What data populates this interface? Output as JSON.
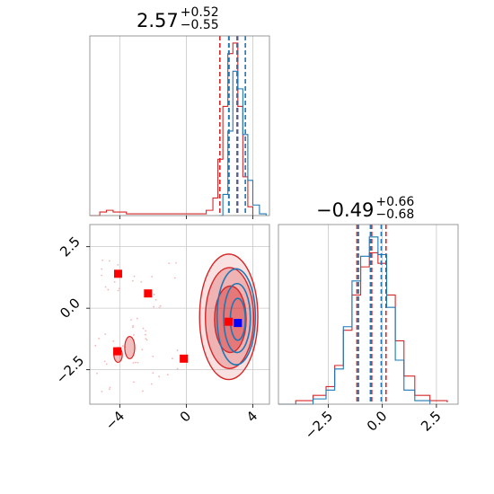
{
  "chart_data": {
    "type": "corner",
    "parameters": [
      {
        "title_value": "2.57",
        "title_plus": "+0.52",
        "title_minus": "−0.55",
        "median": 2.57,
        "lower": 2.02,
        "upper": 3.09
      },
      {
        "title_value": "−0.49",
        "title_plus": "+0.66",
        "title_minus": "−0.68",
        "median": -0.49,
        "lower": -1.17,
        "upper": 0.17
      }
    ],
    "x_ticks_param1": [
      "−4",
      "0",
      "4"
    ],
    "x_ticks_param2": [
      "−2.5",
      "0.0",
      "2.5"
    ],
    "y_ticks_param2": [
      "2.5",
      "0.0",
      "−2.5"
    ],
    "xlim_param1": [
      -5.8,
      5.0
    ],
    "xlim_param2": [
      -4.8,
      3.5
    ],
    "ylim_param2": [
      -3.9,
      3.4
    ],
    "grid": true,
    "series": [
      {
        "color": "#d62728",
        "quantile_lines_param1": [
          2.02,
          2.57,
          3.09
        ],
        "quantile_lines_param2": [
          -1.17,
          -0.49,
          0.17
        ],
        "hist_param1": [
          {
            "x": -5.8,
            "h": 0.0
          },
          {
            "x": -5.2,
            "h": 0.02
          },
          {
            "x": -4.8,
            "h": 0.03
          },
          {
            "x": -4.4,
            "h": 0.02
          },
          {
            "x": -4.0,
            "h": 0.02
          },
          {
            "x": -3.6,
            "h": 0.01
          },
          {
            "x": -1.2,
            "h": 0.01
          },
          {
            "x": 0.0,
            "h": 0.01
          },
          {
            "x": 1.2,
            "h": 0.03
          },
          {
            "x": 1.6,
            "h": 0.1
          },
          {
            "x": 1.9,
            "h": 0.32
          },
          {
            "x": 2.2,
            "h": 0.62
          },
          {
            "x": 2.5,
            "h": 0.92
          },
          {
            "x": 2.8,
            "h": 0.98
          },
          {
            "x": 3.1,
            "h": 0.62
          },
          {
            "x": 3.4,
            "h": 0.22
          },
          {
            "x": 3.7,
            "h": 0.05
          },
          {
            "x": 4.0,
            "h": 0.0
          }
        ],
        "hist_param2": [
          {
            "x": -4.8,
            "h": 0.0
          },
          {
            "x": -4.0,
            "h": 0.02
          },
          {
            "x": -3.2,
            "h": 0.05
          },
          {
            "x": -2.6,
            "h": 0.1
          },
          {
            "x": -2.2,
            "h": 0.22
          },
          {
            "x": -1.8,
            "h": 0.42
          },
          {
            "x": -1.4,
            "h": 0.62
          },
          {
            "x": -1.0,
            "h": 0.78
          },
          {
            "x": -0.6,
            "h": 0.86
          },
          {
            "x": -0.2,
            "h": 0.8
          },
          {
            "x": 0.2,
            "h": 0.62
          },
          {
            "x": 0.6,
            "h": 0.36
          },
          {
            "x": 1.0,
            "h": 0.16
          },
          {
            "x": 1.5,
            "h": 0.05
          },
          {
            "x": 2.2,
            "h": 0.02
          },
          {
            "x": 3.0,
            "h": 0.01
          }
        ],
        "contours": [
          {
            "cx": 2.55,
            "cy": -0.35,
            "rx": 1.75,
            "ry": 2.55,
            "alpha": 0.25
          },
          {
            "cx": 2.6,
            "cy": -0.4,
            "rx": 1.45,
            "ry": 2.05,
            "alpha": 0.45
          },
          {
            "cx": 2.65,
            "cy": -0.45,
            "rx": 0.95,
            "ry": 1.35,
            "alpha": 0.75
          }
        ],
        "outlier_contours": [
          {
            "cx": -3.4,
            "cy": -1.6,
            "rx": 0.3,
            "ry": 0.45
          },
          {
            "cx": -4.1,
            "cy": -1.9,
            "rx": 0.25,
            "ry": 0.3
          }
        ],
        "markers": [
          {
            "x": -4.1,
            "y": 1.4
          },
          {
            "x": -2.3,
            "y": 0.6
          },
          {
            "x": -0.15,
            "y": -2.05
          },
          {
            "x": -4.15,
            "y": -1.75
          },
          {
            "x": 2.55,
            "y": -0.55
          }
        ]
      },
      {
        "color": "#1f77b4",
        "quantile_lines_param1": [
          2.55,
          3.05,
          3.55
        ],
        "quantile_lines_param2": [
          -1.1,
          -0.55,
          -0.05
        ],
        "hist_param1": [
          {
            "x": 2.0,
            "h": 0.0
          },
          {
            "x": 2.2,
            "h": 0.12
          },
          {
            "x": 2.5,
            "h": 0.48
          },
          {
            "x": 2.8,
            "h": 0.82
          },
          {
            "x": 3.1,
            "h": 0.72
          },
          {
            "x": 3.4,
            "h": 0.46
          },
          {
            "x": 3.7,
            "h": 0.2
          },
          {
            "x": 4.0,
            "h": 0.06
          },
          {
            "x": 4.4,
            "h": 0.01
          },
          {
            "x": 4.8,
            "h": 0.0
          }
        ],
        "hist_param2": [
          {
            "x": -4.8,
            "h": 0.0
          },
          {
            "x": -3.2,
            "h": 0.03
          },
          {
            "x": -2.6,
            "h": 0.08
          },
          {
            "x": -2.2,
            "h": 0.2
          },
          {
            "x": -1.8,
            "h": 0.44
          },
          {
            "x": -1.4,
            "h": 0.7
          },
          {
            "x": -1.0,
            "h": 0.84
          },
          {
            "x": -0.6,
            "h": 0.95
          },
          {
            "x": -0.2,
            "h": 0.85
          },
          {
            "x": 0.2,
            "h": 0.55
          },
          {
            "x": 0.6,
            "h": 0.25
          },
          {
            "x": 1.0,
            "h": 0.08
          },
          {
            "x": 1.5,
            "h": 0.02
          },
          {
            "x": 2.2,
            "h": 0.0
          }
        ],
        "contours": [
          {
            "cx": 3.0,
            "cy": -0.35,
            "rx": 1.15,
            "ry": 1.95
          },
          {
            "cx": 3.05,
            "cy": -0.4,
            "rx": 0.8,
            "ry": 1.4
          },
          {
            "cx": 3.1,
            "cy": -0.45,
            "rx": 0.45,
            "ry": 0.85
          }
        ],
        "markers": [
          {
            "x": 3.1,
            "y": -0.6
          }
        ]
      }
    ]
  }
}
